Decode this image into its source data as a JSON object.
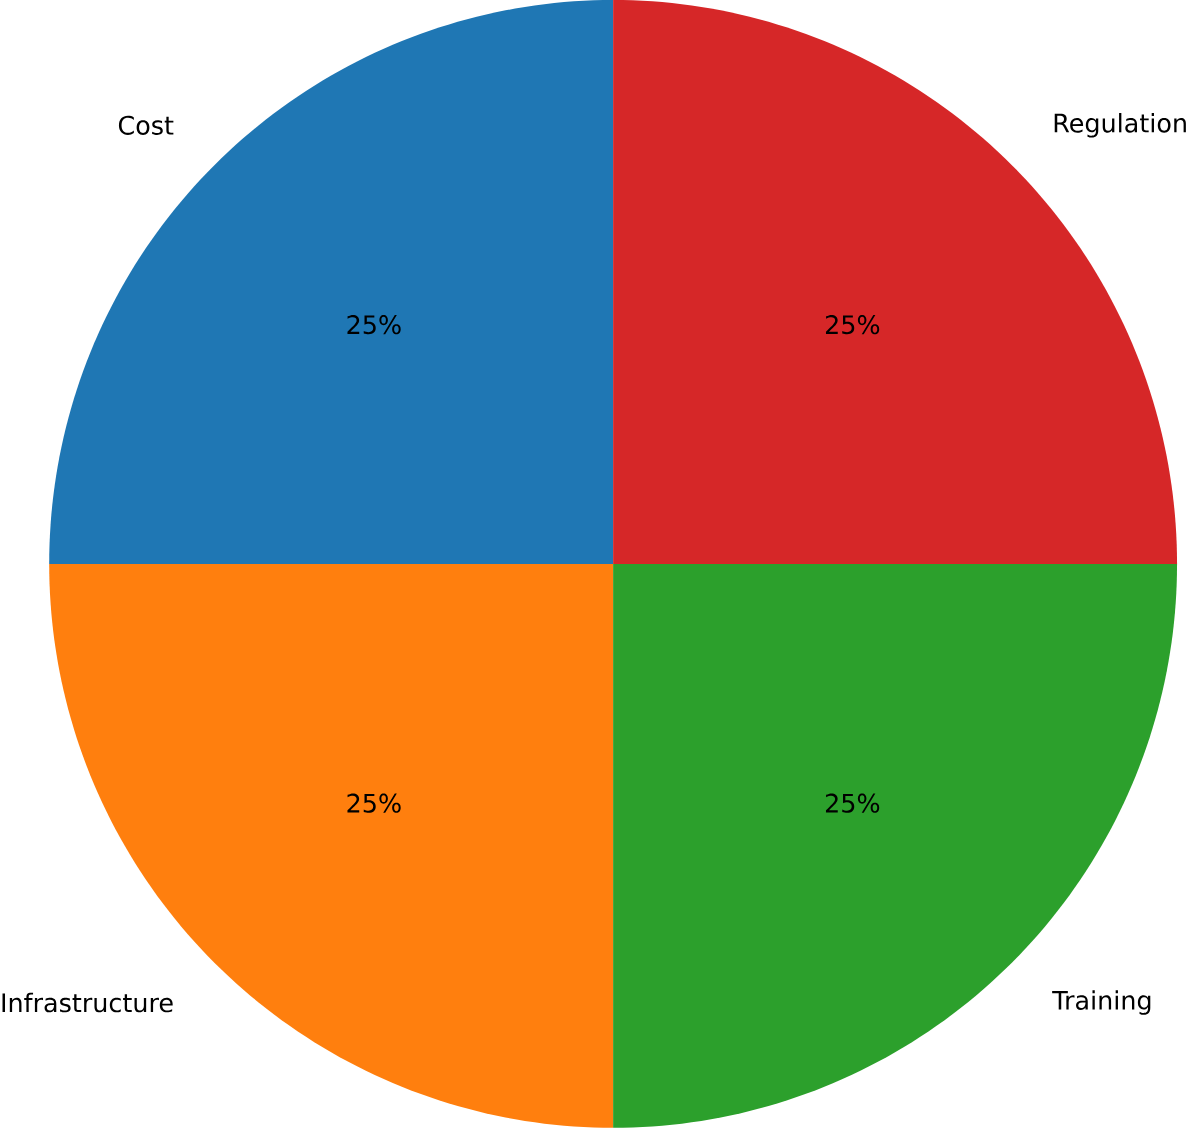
{
  "chart_data": {
    "type": "pie",
    "categories": [
      "Cost",
      "Infrastructure",
      "Training",
      "Regulation"
    ],
    "values": [
      25,
      25,
      25,
      25
    ],
    "colors": [
      "#1f77b4",
      "#ff7f0e",
      "#2ca02c",
      "#d62728"
    ],
    "value_labels": [
      "25%",
      "25%",
      "25%",
      "25%"
    ]
  }
}
